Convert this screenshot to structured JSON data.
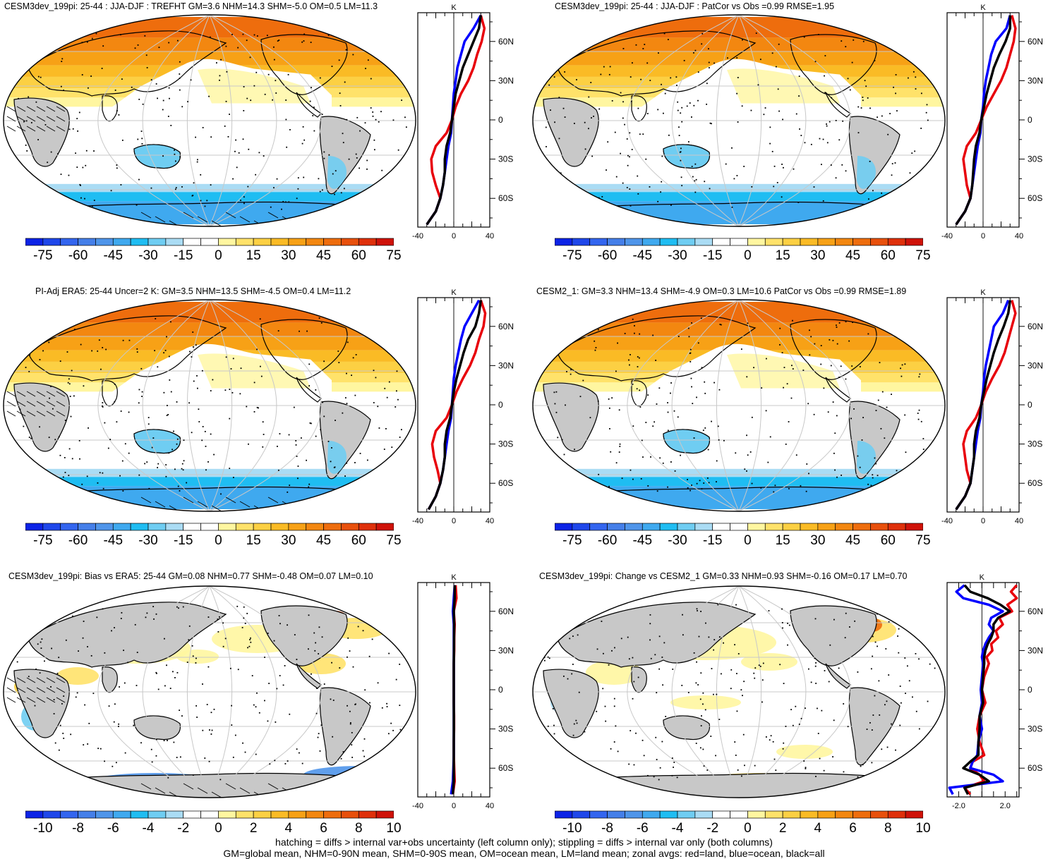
{
  "footer": {
    "line1": "hatching = diffs > internal var+obs uncertainty (left column only); stippling = diffs > internal var only (both columns)",
    "line2": "GM=global mean, NHM=0-90N mean, SHM=0-90S mean, OM=ocean mean, LM=land mean; zonal avgs: red=land, blue=ocean, black=all"
  },
  "colors": {
    "land_mask": "#c8c8c8",
    "zonal_land": "#e8000b",
    "zonal_ocean": "#0000ff",
    "zonal_all": "#000000",
    "palette": [
      "#0c23e6",
      "#1f47ea",
      "#3365ef",
      "#457fe9",
      "#4f95ea",
      "#3fa9ef",
      "#1fbdf2",
      "#6fcdf2",
      "#aadcf4",
      "#ffffff",
      "#ffffff",
      "#fff6a0",
      "#ffe26a",
      "#fcd043",
      "#fabb25",
      "#f7a116",
      "#f38710",
      "#ee6d0d",
      "#e8500c",
      "#df300b",
      "#cf1209"
    ]
  },
  "colorbar_large": {
    "labels": [
      "-75",
      "-60",
      "-45",
      "-30",
      "-15",
      "0",
      "15",
      "30",
      "45",
      "60",
      "75"
    ]
  },
  "colorbar_small": {
    "labels": [
      "-10",
      "-8",
      "-6",
      "-4",
      "-2",
      "0",
      "2",
      "4",
      "6",
      "8",
      "10"
    ]
  },
  "zonal_axes": {
    "unit": "K",
    "lat_labels": [
      "60N",
      "30N",
      "0",
      "30S",
      "60S"
    ],
    "x_labels_large": [
      "-40",
      "0",
      "40"
    ],
    "x_labels_small": [
      "-2.0",
      "2.0"
    ]
  },
  "panels": [
    {
      "title": "CESM3dev_199pi: 25-44 : JJA-DJF : TREFHT GM=3.6 NHM=14.3 SHM=-5.0 OM=0.5 LM=11.3"
    },
    {
      "title": "CESM3dev_199pi: 25-44 : JJA-DJF : PatCor vs Obs =0.99 RMSE=1.95"
    },
    {
      "title": "PI-Adj ERA5: 25-44 Uncer=2 K: GM=3.5 NHM=13.5 SHM=-4.5 OM=0.4 LM=11.2"
    },
    {
      "title": "CESM2_1: GM=3.3 NHM=13.4 SHM=-4.9 OM=0.3 LM=10.6 PatCor vs Obs =0.99 RMSE=1.89"
    },
    {
      "title": "CESM3dev_199pi: Bias vs ERA5: 25-44 GM=0.08 NHM=0.77 SHM=-0.48 OM=0.07 LM=0.10"
    },
    {
      "title": "CESM3dev_199pi: Change vs CESM2_1 GM=0.33 NHM=0.93 SHM=-0.16 OM=0.17 LM=0.70"
    }
  ],
  "chart_data": {
    "type": "map",
    "x_unit": "K",
    "lat_ticks": [
      "60N",
      "30N",
      "0",
      "30S",
      "60S"
    ],
    "panels": [
      {
        "zonal_x_range": [
          -40,
          40
        ],
        "zonal": {
          "lat": [
            80,
            70,
            60,
            50,
            40,
            30,
            20,
            10,
            0,
            -10,
            -20,
            -30,
            -40,
            -50,
            -60,
            -70,
            -80
          ],
          "land": [
            30,
            34,
            31,
            26,
            22,
            16,
            8,
            2,
            -2,
            -8,
            -20,
            -25,
            -24,
            -20,
            -15,
            -20,
            -30
          ],
          "ocean": [
            30,
            22,
            12,
            8,
            4,
            2,
            0,
            -1,
            -2,
            -3,
            -6,
            -8,
            -10,
            -12,
            -15,
            -20,
            -30
          ],
          "all": [
            30,
            28,
            22,
            16,
            10,
            6,
            2,
            0,
            -2,
            -4,
            -8,
            -10,
            -10,
            -12,
            -15,
            -20,
            -30
          ]
        }
      },
      {
        "zonal_x_range": [
          -40,
          40
        ],
        "zonal": {
          "lat": [
            80,
            70,
            60,
            50,
            40,
            30,
            20,
            10,
            0,
            -10,
            -20,
            -30,
            -40,
            -50,
            -60,
            -70,
            -80
          ],
          "land": [
            32,
            36,
            34,
            30,
            26,
            20,
            12,
            4,
            -2,
            -8,
            -18,
            -22,
            -20,
            -18,
            -14,
            -20,
            -30
          ],
          "ocean": [
            30,
            26,
            14,
            9,
            6,
            3,
            1,
            0,
            -2,
            -3,
            -6,
            -8,
            -10,
            -12,
            -14,
            -20,
            -30
          ],
          "all": [
            30,
            30,
            25,
            18,
            12,
            8,
            4,
            1,
            -2,
            -4,
            -8,
            -10,
            -11,
            -12,
            -14,
            -20,
            -30
          ]
        }
      },
      {
        "zonal_x_range": [
          -40,
          40
        ],
        "zonal": {
          "lat": [
            80,
            70,
            60,
            50,
            40,
            30,
            20,
            10,
            0,
            -10,
            -20,
            -30,
            -40,
            -50,
            -60,
            -70,
            -80
          ],
          "land": [
            30,
            35,
            33,
            28,
            24,
            18,
            10,
            3,
            -2,
            -8,
            -20,
            -24,
            -22,
            -18,
            -15,
            -20,
            -28
          ],
          "ocean": [
            28,
            20,
            12,
            8,
            5,
            2,
            0,
            -1,
            -2,
            -3,
            -6,
            -8,
            -10,
            -12,
            -15,
            -20,
            -28
          ],
          "all": [
            30,
            28,
            24,
            16,
            11,
            7,
            3,
            0,
            -2,
            -4,
            -8,
            -10,
            -10,
            -12,
            -15,
            -20,
            -28
          ]
        }
      },
      {
        "zonal_x_range": [
          -40,
          40
        ],
        "zonal": {
          "lat": [
            80,
            70,
            60,
            50,
            40,
            30,
            20,
            10,
            0,
            -10,
            -20,
            -30,
            -40,
            -50,
            -60,
            -70,
            -80
          ],
          "land": [
            32,
            36,
            32,
            28,
            24,
            18,
            10,
            3,
            -2,
            -8,
            -18,
            -22,
            -20,
            -18,
            -14,
            -20,
            -30
          ],
          "ocean": [
            28,
            22,
            12,
            9,
            6,
            3,
            1,
            0,
            -2,
            -3,
            -6,
            -8,
            -10,
            -12,
            -14,
            -20,
            -30
          ],
          "all": [
            30,
            28,
            23,
            17,
            12,
            8,
            4,
            1,
            -2,
            -4,
            -8,
            -10,
            -10,
            -12,
            -14,
            -20,
            -30
          ]
        }
      },
      {
        "zonal_x_range": [
          -40,
          40
        ],
        "zonal": {
          "lat": [
            80,
            70,
            60,
            50,
            40,
            30,
            20,
            10,
            0,
            -10,
            -20,
            -30,
            -40,
            -50,
            -60,
            -70,
            -80
          ],
          "land": [
            2,
            3,
            0,
            1,
            0.5,
            0.5,
            0,
            0,
            0,
            0,
            0.3,
            0.3,
            0,
            0,
            0.5,
            1,
            -1
          ],
          "ocean": [
            1,
            0,
            -1,
            0,
            0,
            0,
            0,
            0,
            0,
            0,
            0,
            0,
            0,
            0,
            -0.5,
            -1,
            -3
          ],
          "all": [
            1,
            1,
            0,
            0.5,
            0.3,
            0.2,
            0,
            0,
            0,
            0,
            0.1,
            0.1,
            0,
            0,
            0,
            0,
            -1
          ]
        }
      },
      {
        "zonal_x_range": [
          -3,
          3.2
        ],
        "zonal": {
          "lat": [
            80,
            75,
            70,
            65,
            60,
            55,
            50,
            45,
            40,
            35,
            30,
            25,
            20,
            10,
            0,
            -10,
            -20,
            -30,
            -40,
            -50,
            -55,
            -60,
            -65,
            -70,
            -75,
            -80
          ],
          "land": [
            3.0,
            2.5,
            3.0,
            2.2,
            2.6,
            1.5,
            1.8,
            1.2,
            1.4,
            0.8,
            0.9,
            0.4,
            0.6,
            0.2,
            0.0,
            0.3,
            -0.2,
            -0.4,
            -0.2,
            0.2,
            -0.8,
            -1.0,
            -0.2,
            0.2,
            -1.5,
            -1.0
          ],
          "ocean": [
            -1.5,
            -2.2,
            -1.6,
            0.6,
            1.8,
            0.8,
            0.6,
            1.0,
            0.6,
            0.3,
            0.1,
            0.0,
            0.1,
            0.0,
            -0.1,
            0.0,
            -0.2,
            0.0,
            -0.3,
            -0.4,
            -0.8,
            -1.0,
            1.0,
            1.8,
            -2.8,
            -2.5
          ],
          "all": [
            -1.5,
            -1.0,
            0.5,
            1.6,
            2.4,
            1.4,
            1.0,
            1.0,
            0.8,
            0.5,
            0.3,
            0.2,
            0.2,
            0.1,
            0.0,
            0.1,
            -0.2,
            -0.2,
            -0.3,
            -0.3,
            -1.0,
            -1.6,
            -0.2,
            0.6,
            -1.5,
            -1.2
          ]
        }
      }
    ]
  }
}
